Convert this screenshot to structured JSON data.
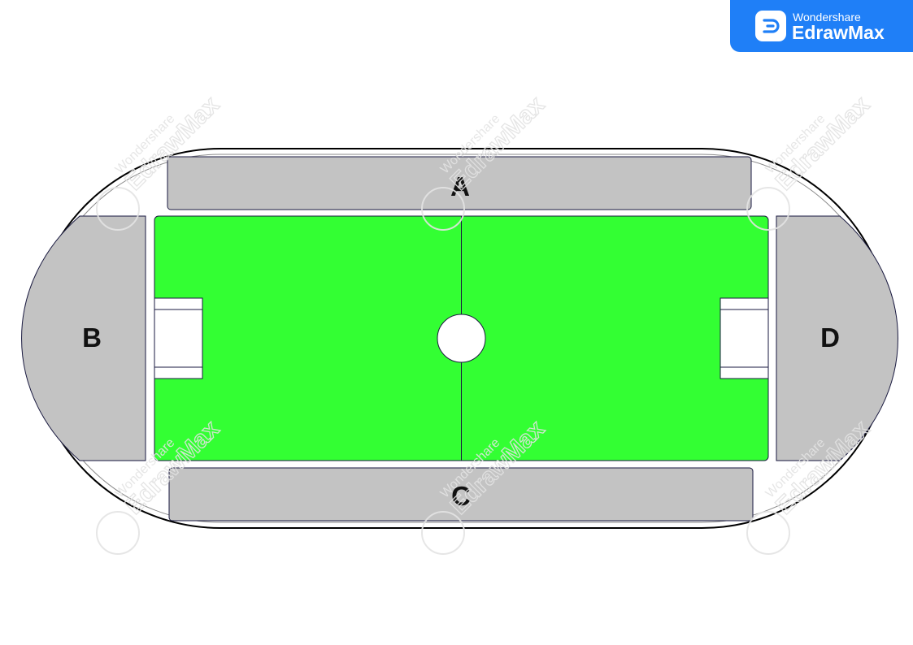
{
  "brand": {
    "company": "Wondershare",
    "product": "EdrawMax",
    "color": "#1f7ff7",
    "logo_icon": "edrawmax-logo-icon"
  },
  "sections": {
    "a": "A",
    "b": "B",
    "c": "C",
    "d": "D"
  },
  "colors": {
    "pitch": "#33ff33",
    "stands": "#c3c3c3",
    "track_outline": "#000000",
    "background": "#ffffff"
  },
  "watermark": {
    "company": "Wondershare",
    "product": "EdrawMax"
  }
}
